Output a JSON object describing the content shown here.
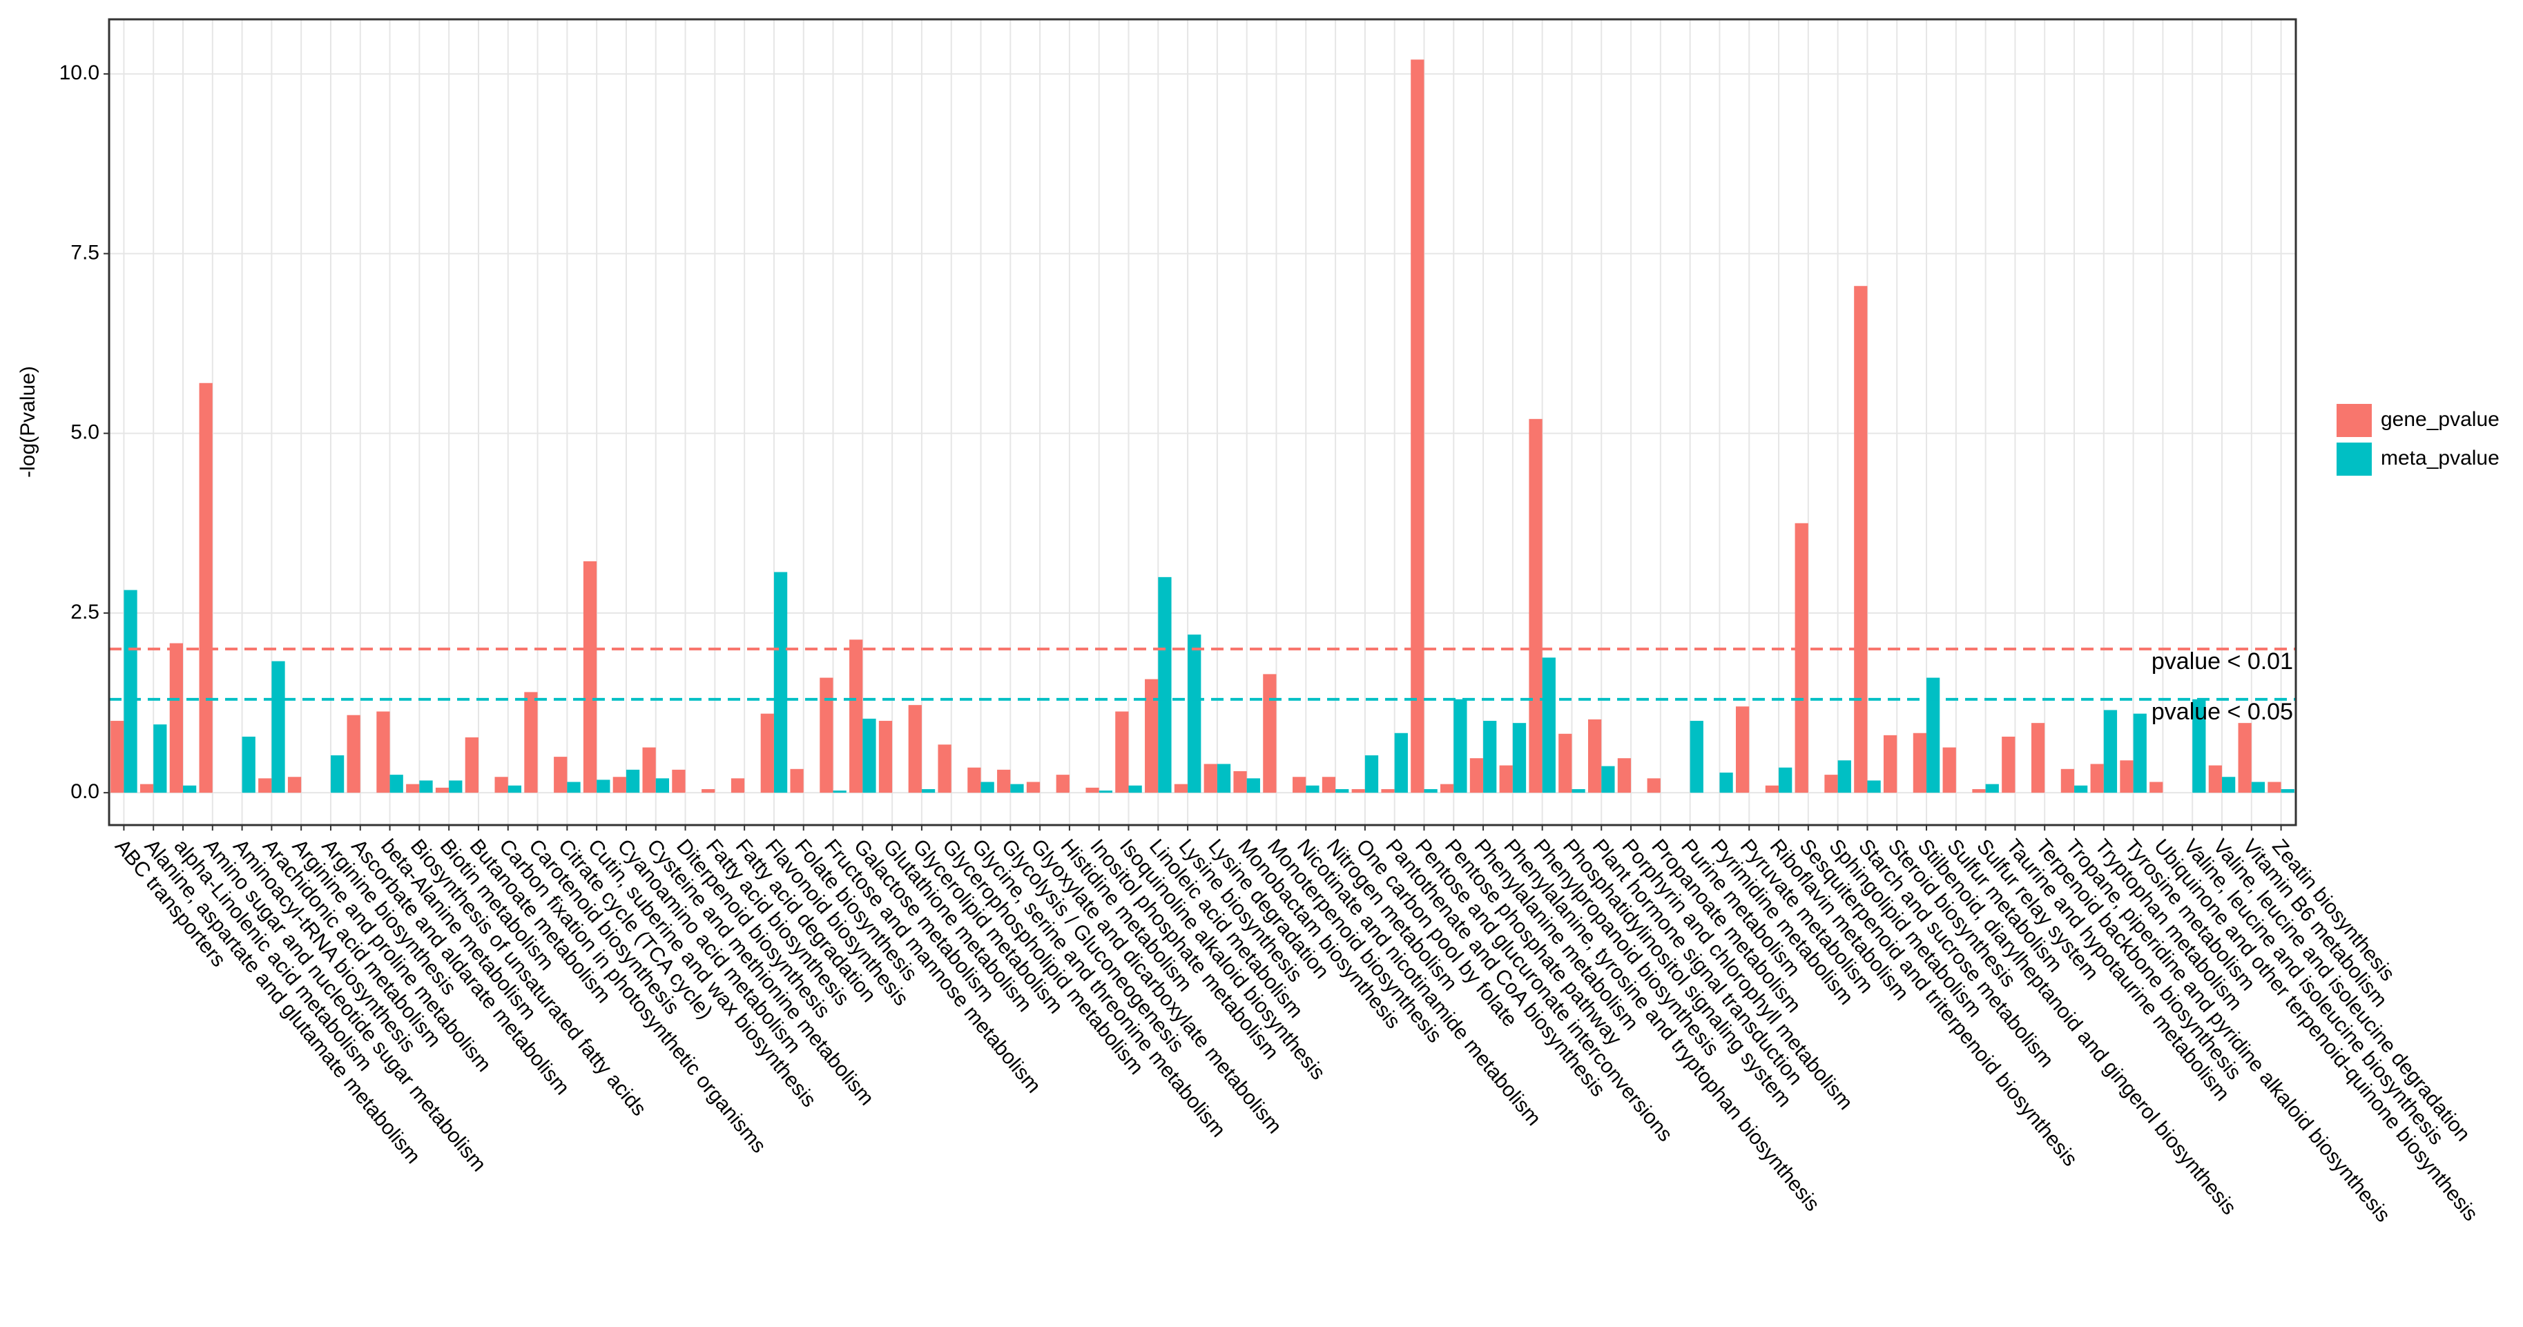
{
  "chart_data": {
    "type": "bar",
    "ylabel": "-log(Pvalue)",
    "categories": [
      "ABC transporters",
      "Alanine, aspartate and glutamate metabolism",
      "alpha-Linolenic acid metabolism",
      "Amino sugar and nucleotide sugar metabolism",
      "Aminoacyl-tRNA biosynthesis",
      "Arachidonic acid metabolism",
      "Arginine and proline metabolism",
      "Arginine biosynthesis",
      "Ascorbate and aldarate metabolism",
      "beta-Alanine metabolism",
      "Biosynthesis of unsaturated fatty acids",
      "Biotin metabolism",
      "Butanoate metabolism",
      "Carbon fixation in photosynthetic organisms",
      "Carotenoid biosynthesis",
      "Citrate cycle (TCA cycle)",
      "Cutin, suberine and wax biosynthesis",
      "Cyanoamino acid metabolism",
      "Cysteine and methionine metabolism",
      "Diterpenoid biosynthesis",
      "Fatty acid biosynthesis",
      "Fatty acid degradation",
      "Flavonoid biosynthesis",
      "Folate biosynthesis",
      "Fructose and mannose metabolism",
      "Galactose metabolism",
      "Glutathione metabolism",
      "Glycerolipid metabolism",
      "Glycerophospholipid metabolism",
      "Glycine, serine and threonine metabolism",
      "Glycolysis / Gluconeogenesis",
      "Glyoxylate and dicarboxylate metabolism",
      "Histidine metabolism",
      "Inositol phosphate metabolism",
      "Isoquinoline alkaloid biosynthesis",
      "Linoleic acid metabolism",
      "Lysine biosynthesis",
      "Lysine degradation",
      "Monobactam biosynthesis",
      "Monoterpenoid biosynthesis",
      "Nicotinate and nicotinamide metabolism",
      "Nitrogen metabolism",
      "One carbon pool by folate",
      "Pantothenate and CoA biosynthesis",
      "Pentose and glucuronate interconversions",
      "Pentose phosphate pathway",
      "Phenylalanine metabolism",
      "Phenylalanine, tyrosine and tryptophan biosynthesis",
      "Phenylpropanoid biosynthesis",
      "Phosphatidylinositol signaling system",
      "Plant hormone signal transduction",
      "Porphyrin and chlorophyll metabolism",
      "Propanoate metabolism",
      "Purine metabolism",
      "Pyrimidine metabolism",
      "Pyruvate metabolism",
      "Riboflavin metabolism",
      "Sesquiterpenoid and triterpenoid biosynthesis",
      "Sphingolipid metabolism",
      "Starch and sucrose metabolism",
      "Steroid biosynthesis",
      "Stilbenoid, diarylheptanoid and gingerol biosynthesis",
      "Sulfur metabolism",
      "Sulfur relay system",
      "Taurine and hypotaurine metabolism",
      "Terpenoid backbone biosynthesis",
      "Tropane, piperidine and pyridine alkaloid biosynthesis",
      "Tryptophan metabolism",
      "Tyrosine metabolism",
      "Ubiquinone and other terpenoid-quinone biosynthesis",
      "Valine, leucine and isoleucine biosynthesis",
      "Valine, leucine and isoleucine degradation",
      "Vitamin B6 metabolism",
      "Zeatin biosynthesis"
    ],
    "series": [
      {
        "name": "gene_pvalue",
        "color": "#f8766d",
        "values": [
          1.0,
          0.12,
          2.08,
          5.7,
          0,
          0.2,
          0.22,
          0,
          1.08,
          1.13,
          0.12,
          0.07,
          0.77,
          0.22,
          1.4,
          0.5,
          3.22,
          0.22,
          0.63,
          0.32,
          0.05,
          0.2,
          1.1,
          0.33,
          1.6,
          2.13,
          1.0,
          1.22,
          0.67,
          0.35,
          0.32,
          0.15,
          0.25,
          0.07,
          1.13,
          1.58,
          0.12,
          0.4,
          0.3,
          1.65,
          0.22,
          0.22,
          0.05,
          0.05,
          10.2,
          0.12,
          0.48,
          0.38,
          5.2,
          0.82,
          1.02,
          0.48,
          0.2,
          0,
          0,
          1.2,
          0.1,
          3.75,
          0.25,
          7.05,
          0.8,
          0.83,
          0.63,
          0.05,
          0.78,
          0.97,
          0.33,
          0.4,
          0.45,
          0.15,
          0,
          0.38,
          0.97,
          0.15
        ]
      },
      {
        "name": "meta_pvalue",
        "color": "#00bfc4",
        "values": [
          2.82,
          0.95,
          0.1,
          0,
          0.78,
          1.83,
          0,
          0.52,
          0,
          0.25,
          0.17,
          0.17,
          0,
          0.1,
          0,
          0.15,
          0.18,
          0.32,
          0.2,
          0,
          0,
          0,
          3.07,
          0,
          0.03,
          1.03,
          0,
          0.05,
          0,
          0.15,
          0.12,
          0,
          0,
          0.03,
          0.1,
          3.0,
          2.2,
          0.4,
          0.2,
          0,
          0.1,
          0.05,
          0.52,
          0.83,
          0.05,
          1.3,
          1.0,
          0.97,
          1.88,
          0.05,
          0.37,
          0,
          0,
          1.0,
          0.28,
          0,
          0.35,
          0,
          0.45,
          0.17,
          0,
          1.6,
          0,
          0.12,
          0,
          0,
          0.1,
          1.15,
          1.1,
          0,
          1.3,
          0.22,
          0.15,
          0.05
        ]
      }
    ],
    "thresholds": [
      {
        "value": 2,
        "label": "pvalue < 0.01",
        "color": "#f8766d"
      },
      {
        "value": 1.3,
        "label": "pvalue < 0.05",
        "color": "#00bfc4"
      }
    ],
    "ylim": [
      -0.45,
      10.76
    ],
    "yticks": [
      {
        "value": 0,
        "label": "0.0"
      },
      {
        "value": 2.5,
        "label": "2.5"
      },
      {
        "value": 5,
        "label": "5.0"
      },
      {
        "value": 7.5,
        "label": "7.5"
      },
      {
        "value": 10,
        "label": "10.0"
      }
    ],
    "grid": true,
    "legend": "right"
  }
}
